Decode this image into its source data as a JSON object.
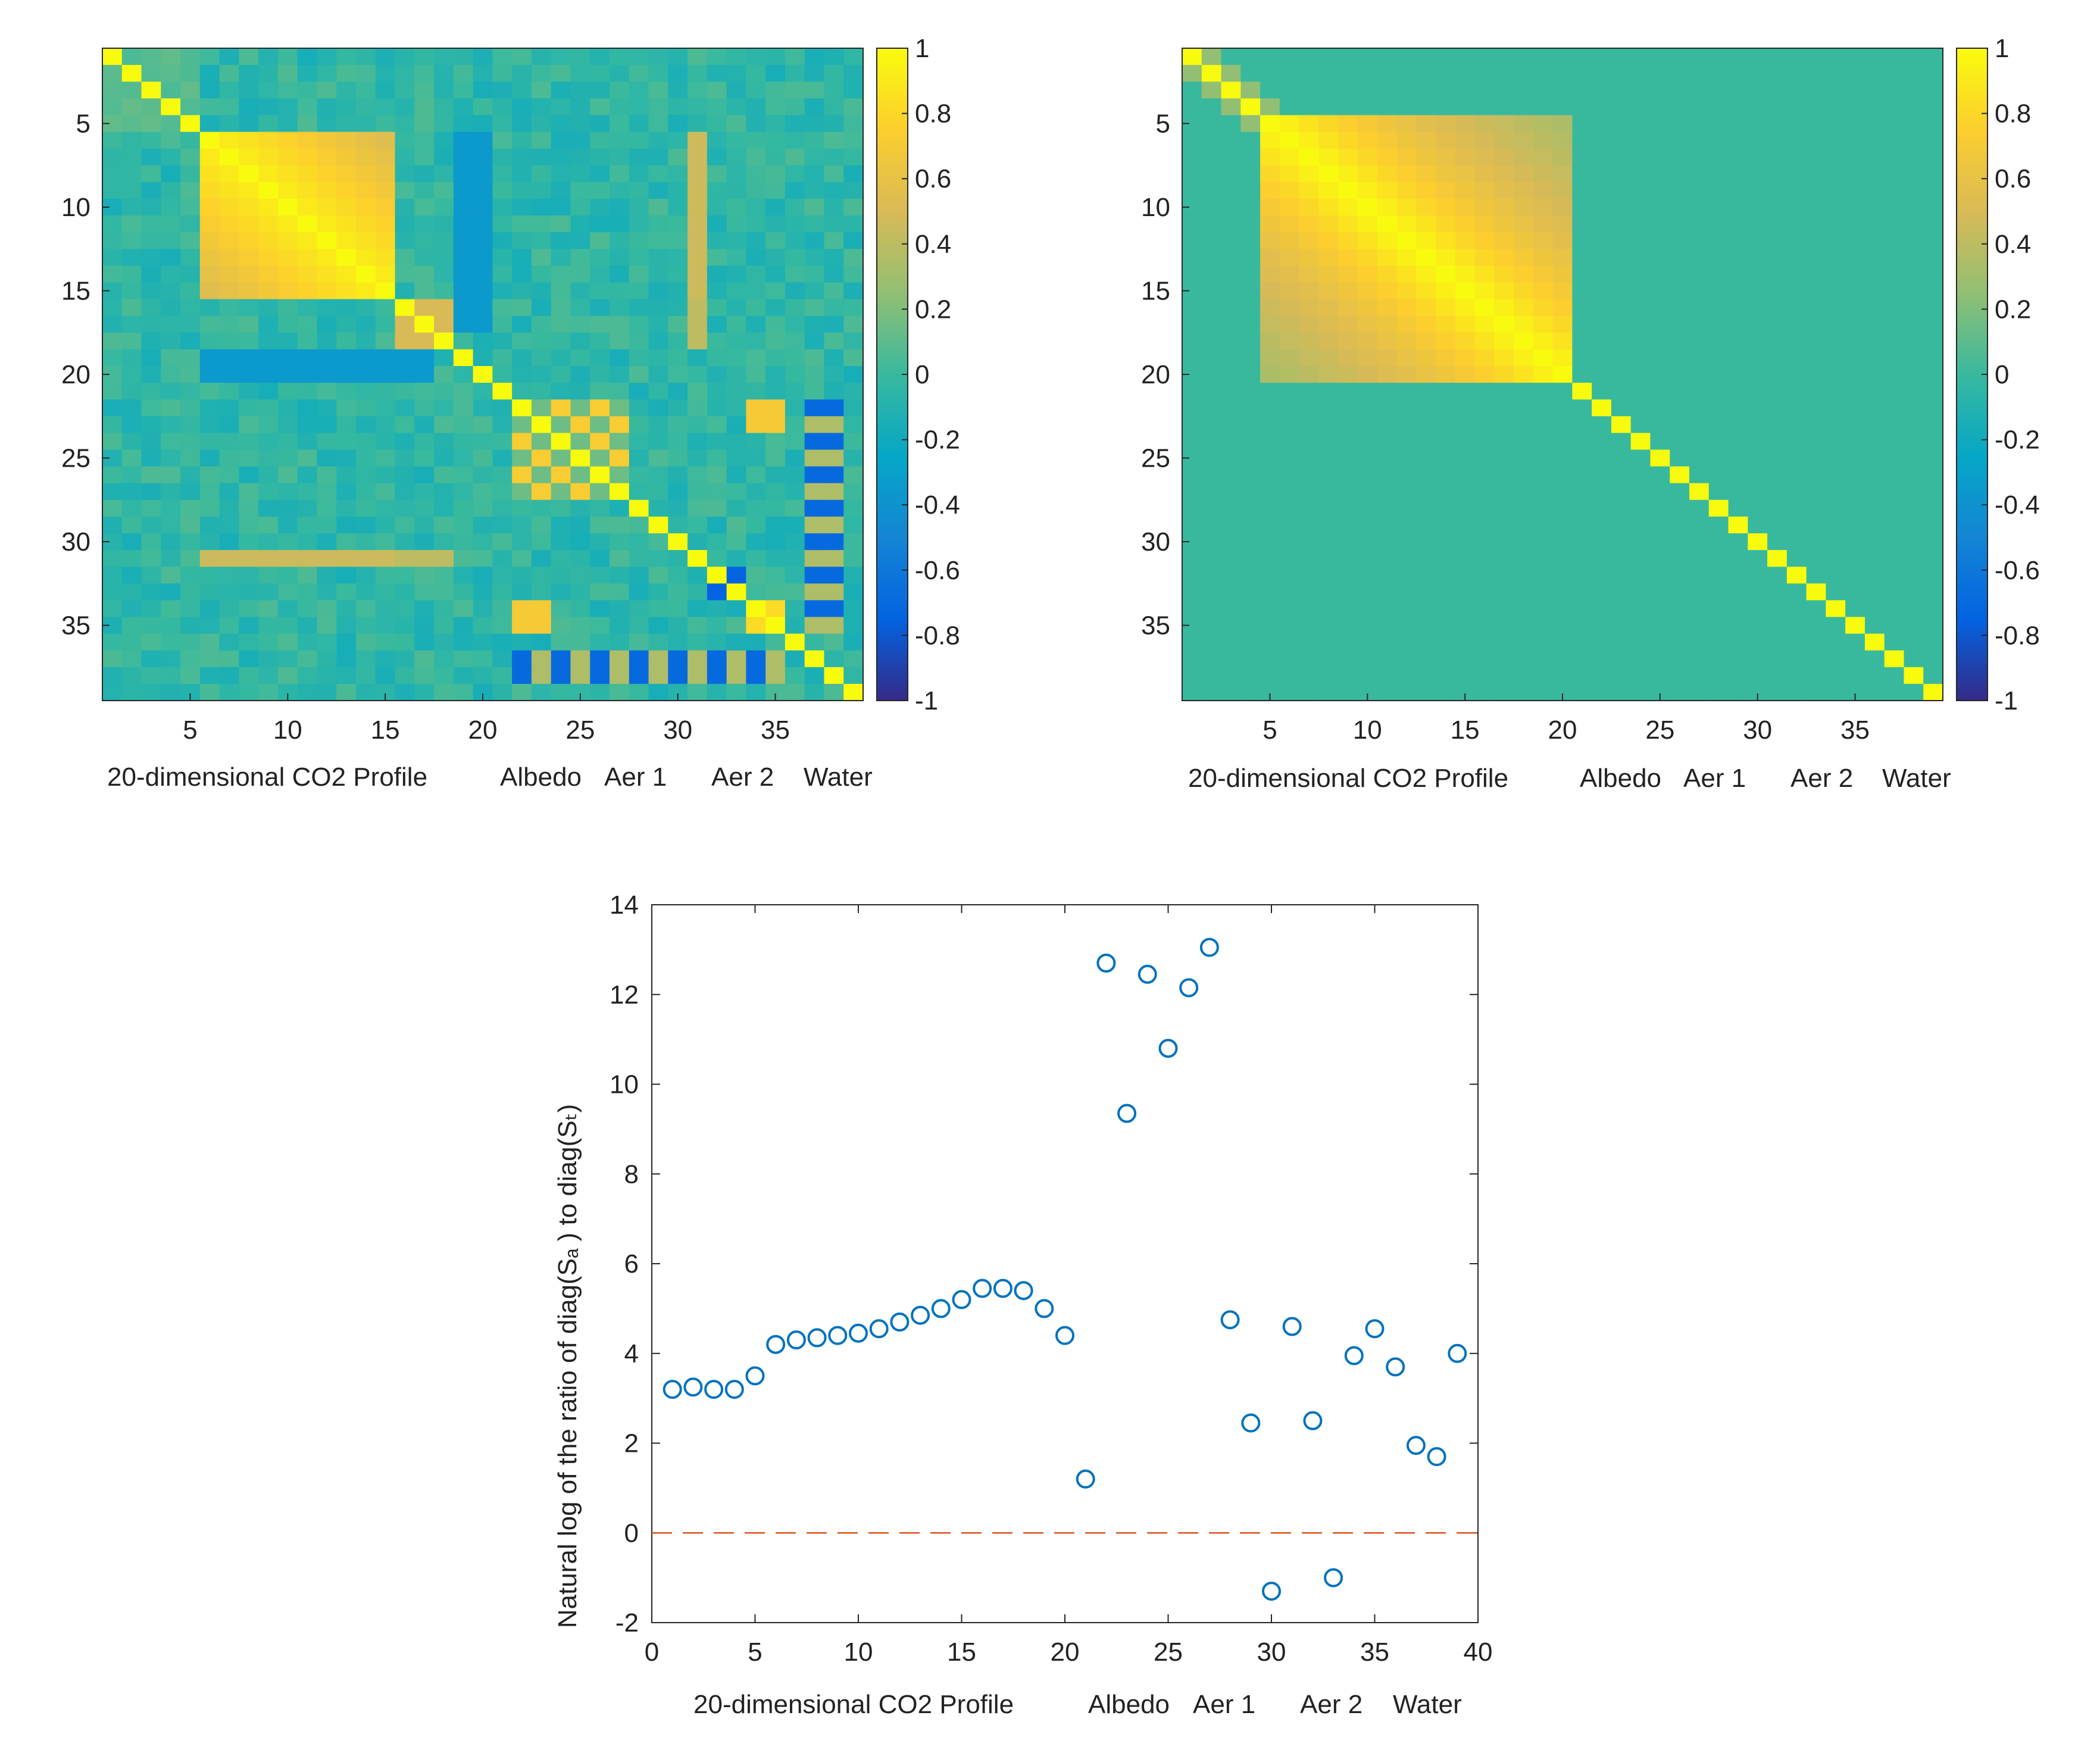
{
  "chart_data": [
    {
      "type": "heatmap",
      "name": "correlation-matrix-posterior",
      "size": 39,
      "clim": [
        -1,
        1
      ],
      "colormap": "parula",
      "xticks": [
        5,
        10,
        15,
        20,
        25,
        30,
        35
      ],
      "yticks": [
        5,
        10,
        15,
        20,
        25,
        30,
        35
      ],
      "colorbar_ticks": [
        "1",
        "0.8",
        "0.6",
        "0.4",
        "0.2",
        "0",
        "-0.2",
        "-0.4",
        "-0.6",
        "-0.8",
        "-1"
      ],
      "group_labels": [
        "20-dimensional CO2 Profile",
        "Albedo",
        "Aer 1",
        "Aer 2",
        "Water"
      ],
      "blocks": {
        "co2_strong_block": {
          "range": [
            6,
            15
          ],
          "value_near_diag": 0.95,
          "value_far": 0.72
        },
        "co2_negative_cols": {
          "cols": [
            19,
            20
          ],
          "rows": [
            6,
            17
          ],
          "value": -0.35
        },
        "co2_negative_rows": {
          "rows": [
            19,
            20
          ],
          "cols": [
            6,
            17
          ],
          "value": -0.35
        },
        "aer2_block": {
          "range": [
            34,
            35
          ],
          "value": 0.8
        },
        "albedo_checker": {
          "range": [
            22,
            27
          ],
          "value": 0.7
        },
        "water_negative": {
          "rows": [
            37,
            38
          ],
          "cols": [
            22,
            35
          ],
          "value": -0.7
        }
      }
    },
    {
      "type": "heatmap",
      "name": "correlation-matrix-prior",
      "size": 39,
      "clim": [
        -1,
        1
      ],
      "colormap": "parula",
      "xticks": [
        5,
        10,
        15,
        20,
        25,
        30,
        35
      ],
      "yticks": [
        5,
        10,
        15,
        20,
        25,
        30,
        35
      ],
      "colorbar_ticks": [
        "1",
        "0.8",
        "0.6",
        "0.4",
        "0.2",
        "0",
        "-0.2",
        "-0.4",
        "-0.6",
        "-0.8",
        "-1"
      ],
      "group_labels": [
        "20-dimensional CO2 Profile",
        "Albedo",
        "Aer 1",
        "Aer 2",
        "Water"
      ],
      "blocks": {
        "co2_block": {
          "range": [
            5,
            20
          ],
          "correlation_length": 14
        },
        "off_diagonal_value": 0
      }
    },
    {
      "type": "scatter",
      "name": "log-ratio-scatter",
      "xlim": [
        0,
        40
      ],
      "ylim": [
        -2,
        14
      ],
      "xticks": [
        0,
        5,
        10,
        15,
        20,
        25,
        30,
        35,
        40
      ],
      "yticks": [
        -2,
        0,
        2,
        4,
        6,
        8,
        10,
        12,
        14
      ],
      "ylabel": "Natural log of the ratio of diag(Sₐ ) to diag(Sₜ)",
      "group_labels": [
        "20-dimensional CO2 Profile",
        "Albedo",
        "Aer 1",
        "Aer 2",
        "Water"
      ],
      "reference_line": {
        "y": 0,
        "style": "dashed",
        "color": "#d95319"
      },
      "marker_color": "#0072bd",
      "x": [
        1,
        2,
        3,
        4,
        5,
        6,
        7,
        8,
        9,
        10,
        11,
        12,
        13,
        14,
        15,
        16,
        17,
        18,
        19,
        20,
        21,
        22,
        23,
        24,
        25,
        26,
        27,
        28,
        29,
        30,
        31,
        32,
        33,
        34,
        35,
        36,
        37,
        38,
        39
      ],
      "y": [
        3.2,
        3.25,
        3.2,
        3.2,
        3.5,
        4.2,
        4.3,
        4.35,
        4.4,
        4.45,
        4.55,
        4.7,
        4.85,
        5.0,
        5.2,
        5.45,
        5.45,
        5.4,
        5.0,
        4.4,
        1.2,
        12.7,
        9.35,
        12.45,
        10.8,
        12.15,
        13.05,
        4.75,
        2.45,
        -1.3,
        4.6,
        2.5,
        -1.0,
        3.95,
        4.55,
        3.7,
        1.95,
        1.7,
        4.0
      ]
    }
  ]
}
